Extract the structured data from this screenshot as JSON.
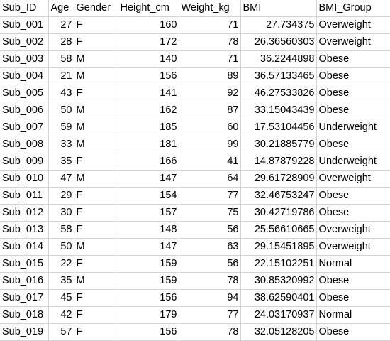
{
  "sheet": {
    "headers": [
      "Sub_ID",
      "Age",
      "Gender",
      "Height_cm",
      "Weight_kg",
      "BMI",
      "BMI_Group"
    ],
    "rows": [
      [
        "Sub_001",
        "27",
        "F",
        "160",
        "71",
        "27.734375",
        "Overweight"
      ],
      [
        "Sub_002",
        "28",
        "F",
        "172",
        "78",
        "26.36560303",
        "Overweight"
      ],
      [
        "Sub_003",
        "58",
        "M",
        "140",
        "71",
        "36.2244898",
        "Obese"
      ],
      [
        "Sub_004",
        "21",
        "M",
        "156",
        "89",
        "36.57133465",
        "Obese"
      ],
      [
        "Sub_005",
        "43",
        "F",
        "141",
        "92",
        "46.27533826",
        "Obese"
      ],
      [
        "Sub_006",
        "50",
        "M",
        "162",
        "87",
        "33.15043439",
        "Obese"
      ],
      [
        "Sub_007",
        "59",
        "M",
        "185",
        "60",
        "17.53104456",
        "Underweight"
      ],
      [
        "Sub_008",
        "33",
        "M",
        "181",
        "99",
        "30.21885779",
        "Obese"
      ],
      [
        "Sub_009",
        "35",
        "F",
        "166",
        "41",
        "14.87879228",
        "Underweight"
      ],
      [
        "Sub_010",
        "47",
        "M",
        "147",
        "64",
        "29.61728909",
        "Overweight"
      ],
      [
        "Sub_011",
        "29",
        "F",
        "154",
        "77",
        "32.46753247",
        "Obese"
      ],
      [
        "Sub_012",
        "30",
        "F",
        "157",
        "75",
        "30.42719786",
        "Obese"
      ],
      [
        "Sub_013",
        "58",
        "F",
        "148",
        "56",
        "25.56610665",
        "Overweight"
      ],
      [
        "Sub_014",
        "50",
        "M",
        "147",
        "63",
        "29.15451895",
        "Overweight"
      ],
      [
        "Sub_015",
        "22",
        "F",
        "159",
        "56",
        "22.15102251",
        "Normal"
      ],
      [
        "Sub_016",
        "35",
        "M",
        "159",
        "78",
        "30.85320992",
        "Obese"
      ],
      [
        "Sub_017",
        "45",
        "F",
        "156",
        "94",
        "38.62590401",
        "Obese"
      ],
      [
        "Sub_018",
        "42",
        "F",
        "179",
        "77",
        "24.03170937",
        "Normal"
      ],
      [
        "Sub_019",
        "57",
        "F",
        "156",
        "78",
        "32.05128205",
        "Obese"
      ]
    ]
  }
}
